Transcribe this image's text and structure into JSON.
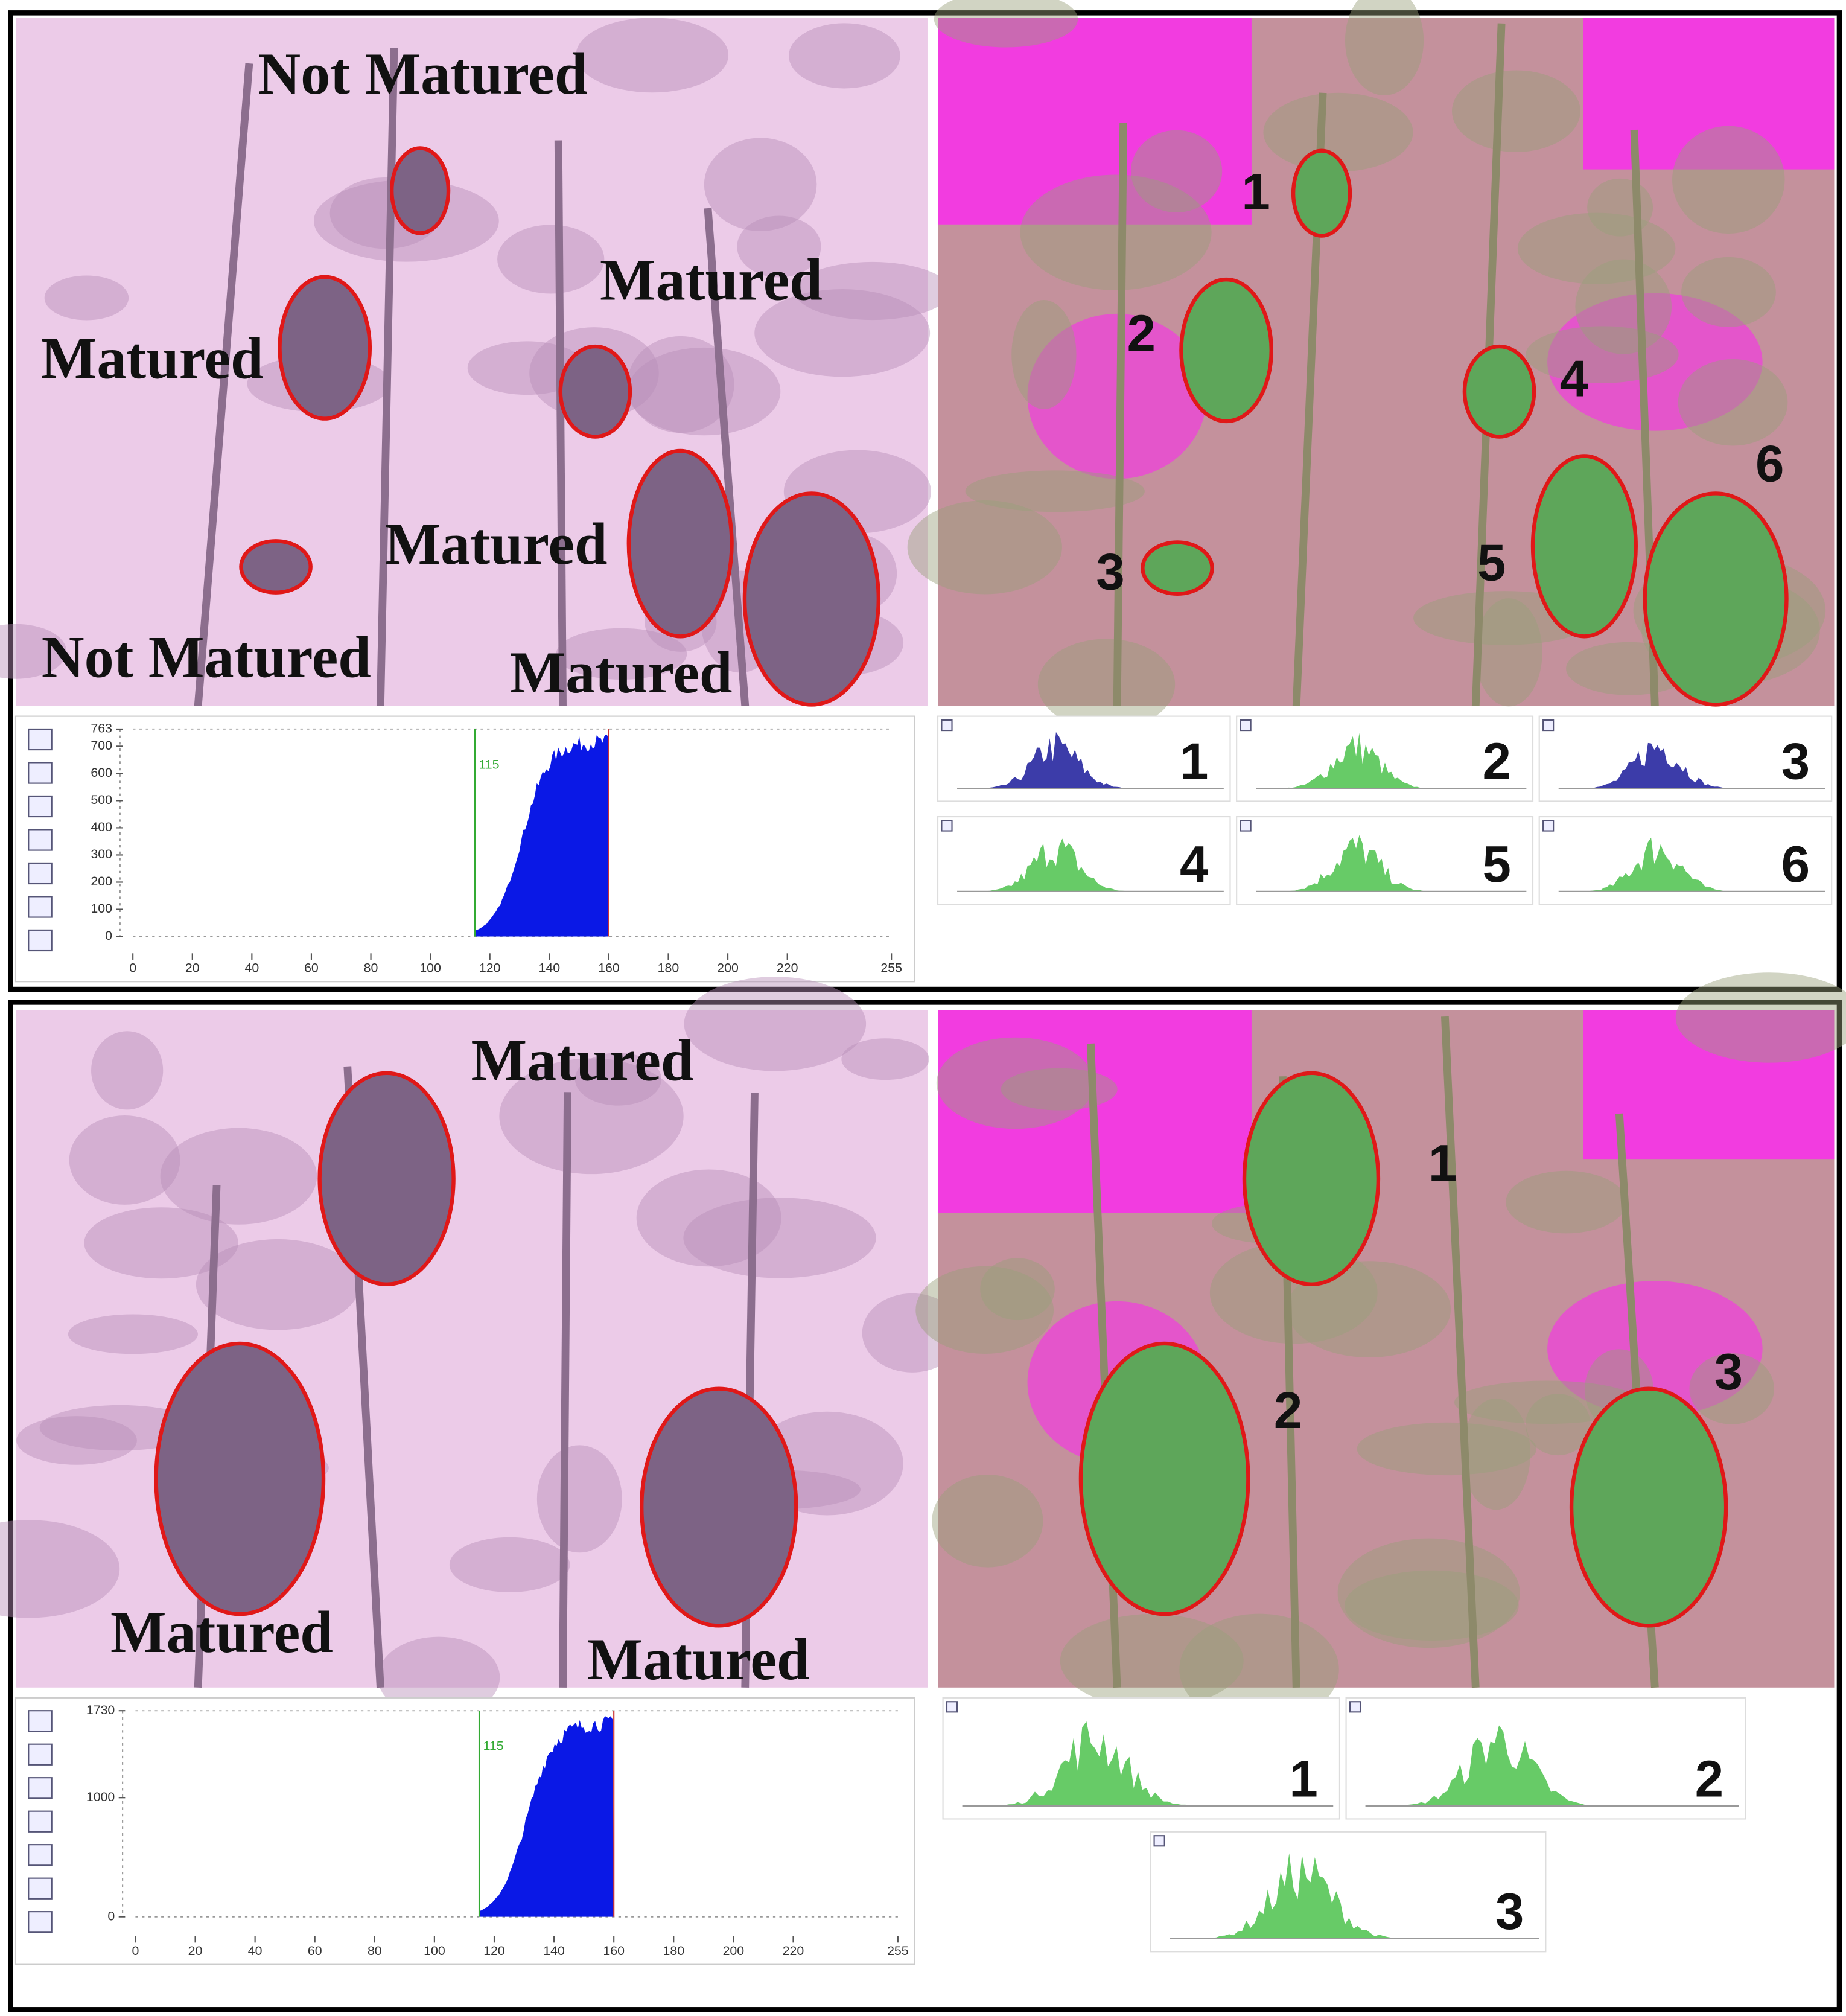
{
  "top_panel": {
    "photo_labels": [
      "Not Matured",
      "Matured",
      "Matured",
      "Matured",
      "Not Matured",
      "Matured"
    ],
    "region_numbers": [
      "1",
      "2",
      "4",
      "6",
      "3",
      "5"
    ],
    "histogram": {
      "xlim": [
        0,
        255
      ],
      "xticks": [
        0,
        20,
        40,
        60,
        80,
        100,
        120,
        140,
        160,
        180,
        200,
        220,
        255
      ],
      "ylim": [
        0,
        763
      ],
      "yticks": [
        0,
        100,
        200,
        300,
        400,
        500,
        600,
        700,
        763
      ],
      "threshold": 115
    },
    "region_histograms": [
      "1",
      "2",
      "3",
      "4",
      "5",
      "6"
    ]
  },
  "bottom_panel": {
    "photo_labels": [
      "Matured",
      "Matured",
      "Matured"
    ],
    "region_numbers": [
      "1",
      "2",
      "3"
    ],
    "histogram": {
      "xlim": [
        0,
        255
      ],
      "xticks": [
        0,
        20,
        40,
        60,
        80,
        100,
        120,
        140,
        160,
        180,
        200,
        220,
        255
      ],
      "ylim": [
        0,
        1730
      ],
      "yticks": [
        0,
        1000,
        1730
      ],
      "threshold": 115
    },
    "region_histograms": [
      "1",
      "2",
      "3"
    ]
  }
}
